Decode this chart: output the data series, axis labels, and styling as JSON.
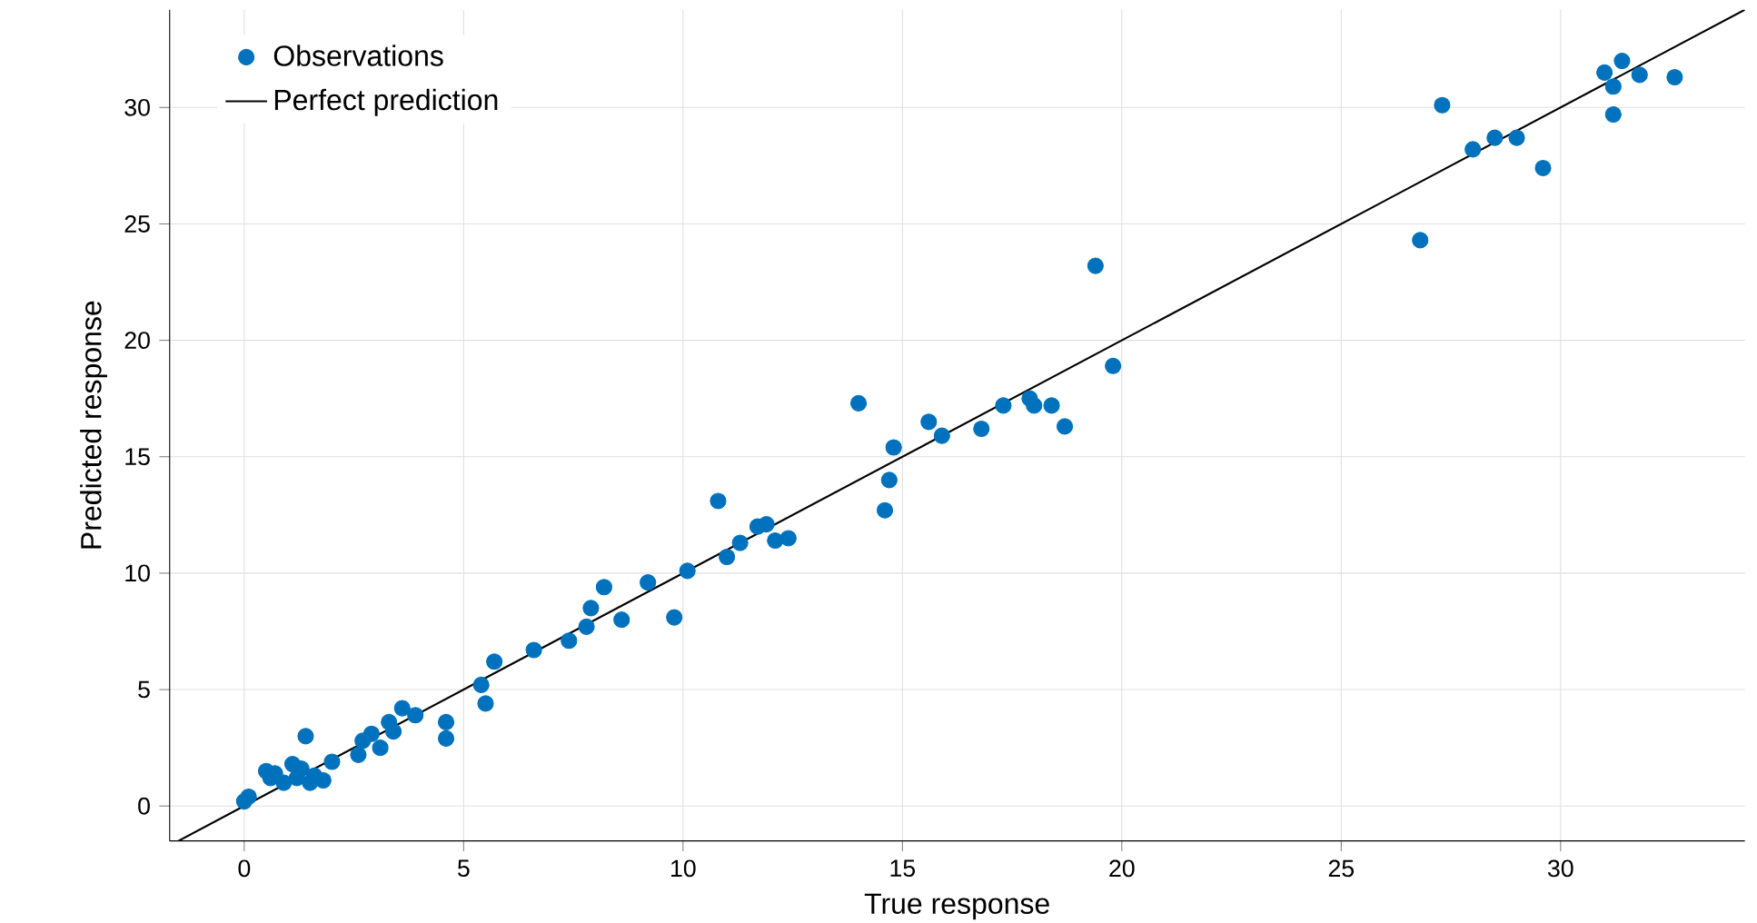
{
  "chart_data": {
    "type": "scatter",
    "xlabel": "True response",
    "ylabel": "Predicted response",
    "xlim": [
      -1.7,
      34.2
    ],
    "ylim": [
      -1.5,
      34.2
    ],
    "xticks": [
      0,
      5,
      10,
      15,
      20,
      25,
      30
    ],
    "yticks": [
      0,
      5,
      10,
      15,
      20,
      25,
      30
    ],
    "grid": true,
    "legend": "top left",
    "series": [
      {
        "name": "Observations",
        "color": "#0072bd",
        "marker": "circle",
        "x": [
          0.0,
          0.1,
          0.5,
          0.6,
          0.7,
          0.9,
          1.1,
          1.2,
          1.3,
          1.4,
          1.5,
          1.6,
          1.8,
          2.0,
          2.6,
          2.7,
          2.9,
          3.1,
          3.3,
          3.4,
          3.6,
          3.9,
          4.6,
          4.6,
          5.4,
          5.5,
          5.7,
          6.6,
          7.4,
          7.8,
          7.9,
          8.2,
          8.6,
          9.2,
          9.8,
          10.1,
          10.8,
          11.0,
          11.3,
          11.7,
          11.9,
          12.1,
          12.4,
          14.0,
          14.6,
          14.7,
          14.8,
          15.6,
          15.9,
          16.8,
          17.3,
          17.9,
          18.0,
          18.4,
          18.7,
          19.4,
          19.8,
          26.8,
          27.3,
          28.0,
          28.5,
          29.0,
          29.6,
          31.0,
          31.2,
          31.2,
          31.4,
          31.8,
          32.6
        ],
        "values": [
          0.2,
          0.4,
          1.5,
          1.2,
          1.4,
          1.0,
          1.8,
          1.2,
          1.6,
          3.0,
          1.0,
          1.3,
          1.1,
          1.9,
          2.2,
          2.8,
          3.1,
          2.5,
          3.6,
          3.2,
          4.2,
          3.9,
          3.6,
          2.9,
          5.2,
          4.4,
          6.2,
          6.7,
          7.1,
          7.7,
          8.5,
          9.4,
          8.0,
          9.6,
          8.1,
          10.1,
          13.1,
          10.7,
          11.3,
          12.0,
          12.1,
          11.4,
          11.5,
          17.3,
          12.7,
          14.0,
          15.4,
          16.5,
          15.9,
          16.2,
          17.2,
          17.5,
          17.2,
          17.2,
          16.3,
          23.2,
          18.9,
          24.3,
          30.1,
          28.2,
          28.7,
          28.7,
          27.4,
          31.5,
          30.9,
          29.7,
          32.0,
          31.4,
          31.3
        ]
      },
      {
        "name": "Perfect prediction",
        "type": "line",
        "color": "#000000",
        "x": [
          -1.5,
          34.2
        ],
        "values": [
          -1.5,
          34.2
        ]
      }
    ]
  }
}
